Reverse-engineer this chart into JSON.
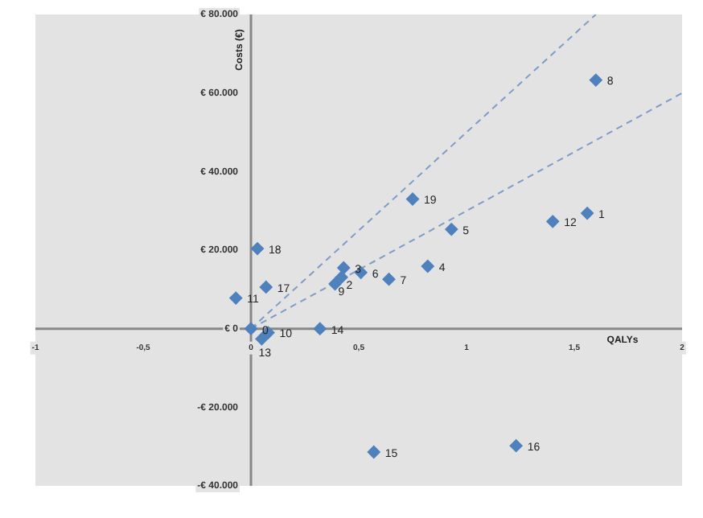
{
  "chart_data": {
    "type": "scatter",
    "xlabel": "QALYs",
    "ylabel": "Costs (€)",
    "xlim": [
      -1,
      2
    ],
    "ylim": [
      -40000,
      80000
    ],
    "xticks": [
      -1,
      {
        "value": -0.5,
        "label": "-0,5"
      },
      0,
      {
        "value": 0.5,
        "label": "0,5"
      },
      1,
      {
        "value": 1.5,
        "label": "1,5"
      },
      2
    ],
    "yticks": [
      {
        "value": -40000,
        "label": "-€ 40.000"
      },
      {
        "value": -20000,
        "label": "-€ 20.000"
      },
      {
        "value": 0,
        "label": "€ 0"
      },
      {
        "value": 20000,
        "label": "€ 20.000"
      },
      {
        "value": 40000,
        "label": "€ 40.000"
      },
      {
        "value": 60000,
        "label": "€ 60.000"
      },
      {
        "value": 80000,
        "label": "€ 80.000"
      }
    ],
    "grid": false,
    "legend": false,
    "marker": "diamond",
    "series": [
      {
        "type": "scatter",
        "color": "#4f81bd",
        "x": [
          1.56,
          0.39,
          0.43,
          0.82,
          0.93,
          0.51,
          0.64,
          1.6,
          0.42,
          0.08,
          -0.07,
          1.4,
          0.05,
          0.32,
          0.57,
          1.23,
          0.07,
          0.03,
          0.75,
          0
        ],
        "values": [
          29400,
          11400,
          15500,
          15900,
          25300,
          14300,
          12600,
          63300,
          13100,
          -1000,
          7800,
          27300,
          -2600,
          0,
          -31400,
          -29800,
          10600,
          20400,
          33000,
          0
        ]
      },
      {
        "type": "line",
        "color": "#7f9cc7",
        "line_style": "dashed",
        "marker": "none",
        "x": [
          0,
          1.6
        ],
        "values": [
          0,
          80000
        ]
      },
      {
        "type": "line",
        "color": "#7f9cc7",
        "line_style": "dashed",
        "marker": "none",
        "x": [
          0,
          2
        ],
        "values": [
          0,
          60000
        ]
      }
    ],
    "annotations": [
      {
        "text": "1",
        "x": 1.56,
        "y": 29400
      },
      {
        "text": "2",
        "x": 0.39,
        "y": 11400
      },
      {
        "text": "3",
        "x": 0.43,
        "y": 15500
      },
      {
        "text": "4",
        "x": 0.82,
        "y": 15900
      },
      {
        "text": "5",
        "x": 0.93,
        "y": 25300
      },
      {
        "text": "6",
        "x": 0.51,
        "y": 14300
      },
      {
        "text": "7",
        "x": 0.64,
        "y": 12600
      },
      {
        "text": "8",
        "x": 1.6,
        "y": 63300
      },
      {
        "text": "9",
        "x": 0.42,
        "y": 13100
      },
      {
        "text": "10",
        "x": 0.08,
        "y": -1000
      },
      {
        "text": "11",
        "x": -0.07,
        "y": 7800
      },
      {
        "text": "12",
        "x": 1.4,
        "y": 27300
      },
      {
        "text": "13",
        "x": 0.05,
        "y": -2600
      },
      {
        "text": "14",
        "x": 0.32,
        "y": 0
      },
      {
        "text": "15",
        "x": 0.57,
        "y": -31400
      },
      {
        "text": "16",
        "x": 1.23,
        "y": -29800
      },
      {
        "text": "17",
        "x": 0.07,
        "y": 10600
      },
      {
        "text": "18",
        "x": 0.03,
        "y": 20400
      },
      {
        "text": "19",
        "x": 0.75,
        "y": 33000
      },
      {
        "text": "0",
        "x": 0,
        "y": 0
      }
    ]
  }
}
